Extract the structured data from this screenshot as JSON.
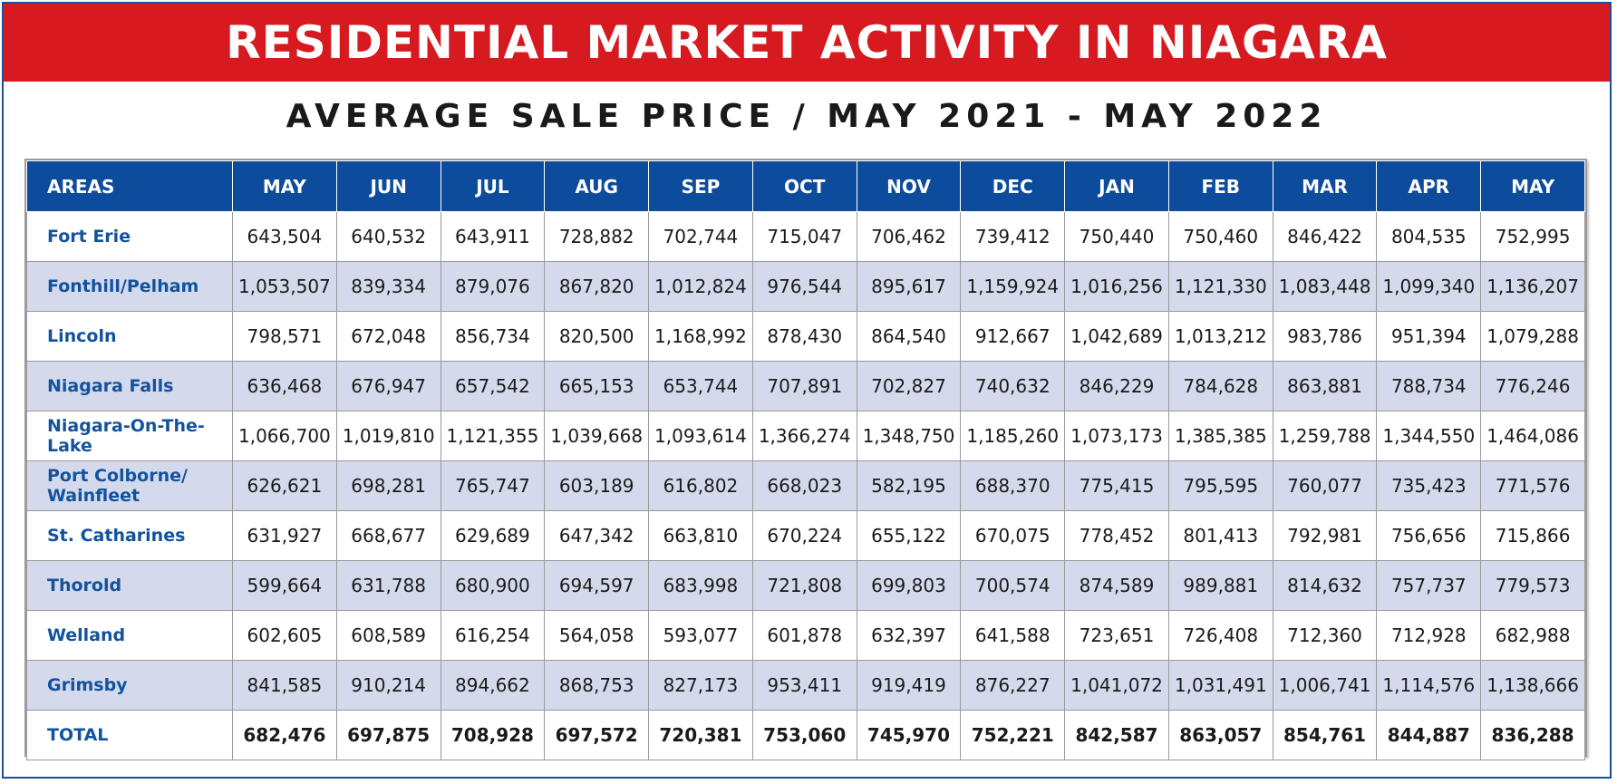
{
  "title": "RESIDENTIAL MARKET ACTIVITY IN NIAGARA",
  "subtitle": "AVERAGE SALE PRICE / MAY 2021 - MAY 2022",
  "colors": {
    "banner": "#d71920",
    "header": "#0d4c9c",
    "area_text": "#12529e",
    "alt_row": "#d4daec"
  },
  "table": {
    "headers": [
      "AREAS",
      "MAY",
      "JUN",
      "JUL",
      "AUG",
      "SEP",
      "OCT",
      "NOV",
      "DEC",
      "JAN",
      "FEB",
      "MAR",
      "APR",
      "MAY"
    ],
    "rows": [
      {
        "area": "Fort Erie",
        "values": [
          "643,504",
          "640,532",
          "643,911",
          "728,882",
          "702,744",
          "715,047",
          "706,462",
          "739,412",
          "750,440",
          "750,460",
          "846,422",
          "804,535",
          "752,995"
        ]
      },
      {
        "area": "Fonthill/Pelham",
        "values": [
          "1,053,507",
          "839,334",
          "879,076",
          "867,820",
          "1,012,824",
          "976,544",
          "895,617",
          "1,159,924",
          "1,016,256",
          "1,121,330",
          "1,083,448",
          "1,099,340",
          "1,136,207"
        ]
      },
      {
        "area": "Lincoln",
        "values": [
          "798,571",
          "672,048",
          "856,734",
          "820,500",
          "1,168,992",
          "878,430",
          "864,540",
          "912,667",
          "1,042,689",
          "1,013,212",
          "983,786",
          "951,394",
          "1,079,288"
        ]
      },
      {
        "area": "Niagara Falls",
        "values": [
          "636,468",
          "676,947",
          "657,542",
          "665,153",
          "653,744",
          "707,891",
          "702,827",
          "740,632",
          "846,229",
          "784,628",
          "863,881",
          "788,734",
          "776,246"
        ]
      },
      {
        "area": "Niagara-On-The-Lake",
        "values": [
          "1,066,700",
          "1,019,810",
          "1,121,355",
          "1,039,668",
          "1,093,614",
          "1,366,274",
          "1,348,750",
          "1,185,260",
          "1,073,173",
          "1,385,385",
          "1,259,788",
          "1,344,550",
          "1,464,086"
        ]
      },
      {
        "area": "Port Colborne/ Wainfleet",
        "values": [
          "626,621",
          "698,281",
          "765,747",
          "603,189",
          "616,802",
          "668,023",
          "582,195",
          "688,370",
          "775,415",
          "795,595",
          "760,077",
          "735,423",
          "771,576"
        ]
      },
      {
        "area": "St. Catharines",
        "values": [
          "631,927",
          "668,677",
          "629,689",
          "647,342",
          "663,810",
          "670,224",
          "655,122",
          "670,075",
          "778,452",
          "801,413",
          "792,981",
          "756,656",
          "715,866"
        ]
      },
      {
        "area": "Thorold",
        "values": [
          "599,664",
          "631,788",
          "680,900",
          "694,597",
          "683,998",
          "721,808",
          "699,803",
          "700,574",
          "874,589",
          "989,881",
          "814,632",
          "757,737",
          "779,573"
        ]
      },
      {
        "area": "Welland",
        "values": [
          "602,605",
          "608,589",
          "616,254",
          "564,058",
          "593,077",
          "601,878",
          "632,397",
          "641,588",
          "723,651",
          "726,408",
          "712,360",
          "712,928",
          "682,988"
        ]
      },
      {
        "area": "Grimsby",
        "values": [
          "841,585",
          "910,214",
          "894,662",
          "868,753",
          "827,173",
          "953,411",
          "919,419",
          "876,227",
          "1,041,072",
          "1,031,491",
          "1,006,741",
          "1,114,576",
          "1,138,666"
        ]
      }
    ],
    "total": {
      "area": "TOTAL",
      "values": [
        "682,476",
        "697,875",
        "708,928",
        "697,572",
        "720,381",
        "753,060",
        "745,970",
        "752,221",
        "842,587",
        "863,057",
        "854,761",
        "844,887",
        "836,288"
      ]
    }
  }
}
